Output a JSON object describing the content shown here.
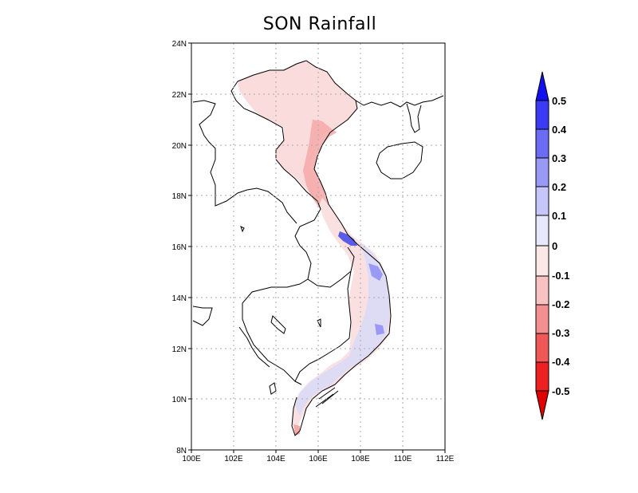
{
  "title": "SON Rainfall",
  "axes": {
    "x_ticks": [
      "100E",
      "102E",
      "104E",
      "106E",
      "108E",
      "110E",
      "112E"
    ],
    "y_ticks": [
      "24N",
      "22N",
      "20N",
      "18N",
      "16N",
      "14N",
      "12N",
      "10N",
      "8N"
    ],
    "lon_range": [
      100,
      112
    ],
    "lat_range": [
      8,
      24
    ],
    "grid": "dotted"
  },
  "colorbar": {
    "labels": [
      "0.5",
      "0.4",
      "0.3",
      "0.2",
      "0.1",
      "0",
      "-0.1",
      "-0.2",
      "-0.3",
      "-0.4",
      "-0.5"
    ],
    "colors_top_to_bottom": [
      "#1010f0",
      "#3a3af2",
      "#6b6bf4",
      "#9a9af6",
      "#c6c6fa",
      "#e8e8fd",
      "#fde8e8",
      "#f9c2c2",
      "#f59090",
      "#f05858",
      "#ec2020",
      "#e00000"
    ],
    "extend": "both"
  },
  "colors": {
    "north_fill": "#fbdcdc",
    "coast_fill": "#f4a8a8",
    "south_fill": "#d9dbf6",
    "central_blue": "#5b5bea"
  }
}
